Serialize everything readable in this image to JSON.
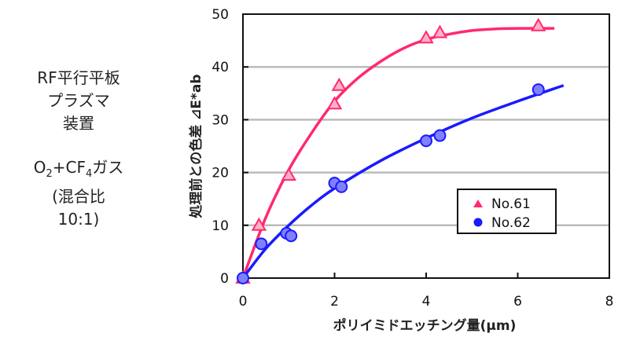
{
  "side_text": {
    "lines1": [
      "RF平行平板",
      "プラズマ",
      "装置"
    ],
    "gas": {
      "o": "O",
      "o_sub": "2",
      "plus": "+CF",
      "cf_sub": "4",
      "suffix": "ガス"
    },
    "lines2": [
      "(混合比",
      "10:1)"
    ]
  },
  "chart_data": {
    "type": "scatter",
    "title": "",
    "xlabel": "ポリイミドエッチング量(μm)",
    "ylabel": "処理前との色差 ⊿E*ab",
    "xlim": [
      0,
      8
    ],
    "ylim": [
      0,
      50
    ],
    "xticks": [
      0,
      2,
      4,
      6,
      8
    ],
    "yticks": [
      0,
      10,
      20,
      30,
      40,
      50
    ],
    "grid": "horizontal",
    "legend_position": "lower-right",
    "series": [
      {
        "name": "No.61",
        "color": "#ff2a6d",
        "marker": "triangle",
        "points": [
          [
            0,
            0
          ],
          [
            0.35,
            10
          ],
          [
            1.0,
            19.5
          ],
          [
            2.0,
            33
          ],
          [
            2.1,
            36.5
          ],
          [
            4.0,
            45.5
          ],
          [
            4.3,
            46.5
          ],
          [
            6.45,
            47.8
          ]
        ],
        "trend": [
          [
            0,
            0
          ],
          [
            0.5,
            11.5
          ],
          [
            1,
            20.5
          ],
          [
            1.5,
            27.5
          ],
          [
            2,
            33.5
          ],
          [
            2.5,
            37.8
          ],
          [
            3,
            41
          ],
          [
            3.5,
            43.5
          ],
          [
            4,
            45.2
          ],
          [
            4.5,
            46.2
          ],
          [
            5,
            46.9
          ],
          [
            5.5,
            47.2
          ],
          [
            6,
            47.3
          ],
          [
            6.8,
            47.3
          ]
        ]
      },
      {
        "name": "No.62",
        "color": "#1a1aff",
        "marker": "circle",
        "points": [
          [
            0,
            0
          ],
          [
            0.4,
            6.5
          ],
          [
            0.95,
            8.5
          ],
          [
            1.05,
            8
          ],
          [
            2.0,
            18
          ],
          [
            2.15,
            17.3
          ],
          [
            4.0,
            26
          ],
          [
            4.3,
            27
          ],
          [
            6.45,
            35.7
          ]
        ],
        "trend": [
          [
            0,
            0
          ],
          [
            0.5,
            5.6
          ],
          [
            1,
            10
          ],
          [
            1.5,
            13.8
          ],
          [
            2,
            17
          ],
          [
            3,
            22.2
          ],
          [
            4,
            26.5
          ],
          [
            5,
            30.3
          ],
          [
            6,
            33.5
          ],
          [
            7,
            36.5
          ]
        ]
      }
    ]
  }
}
